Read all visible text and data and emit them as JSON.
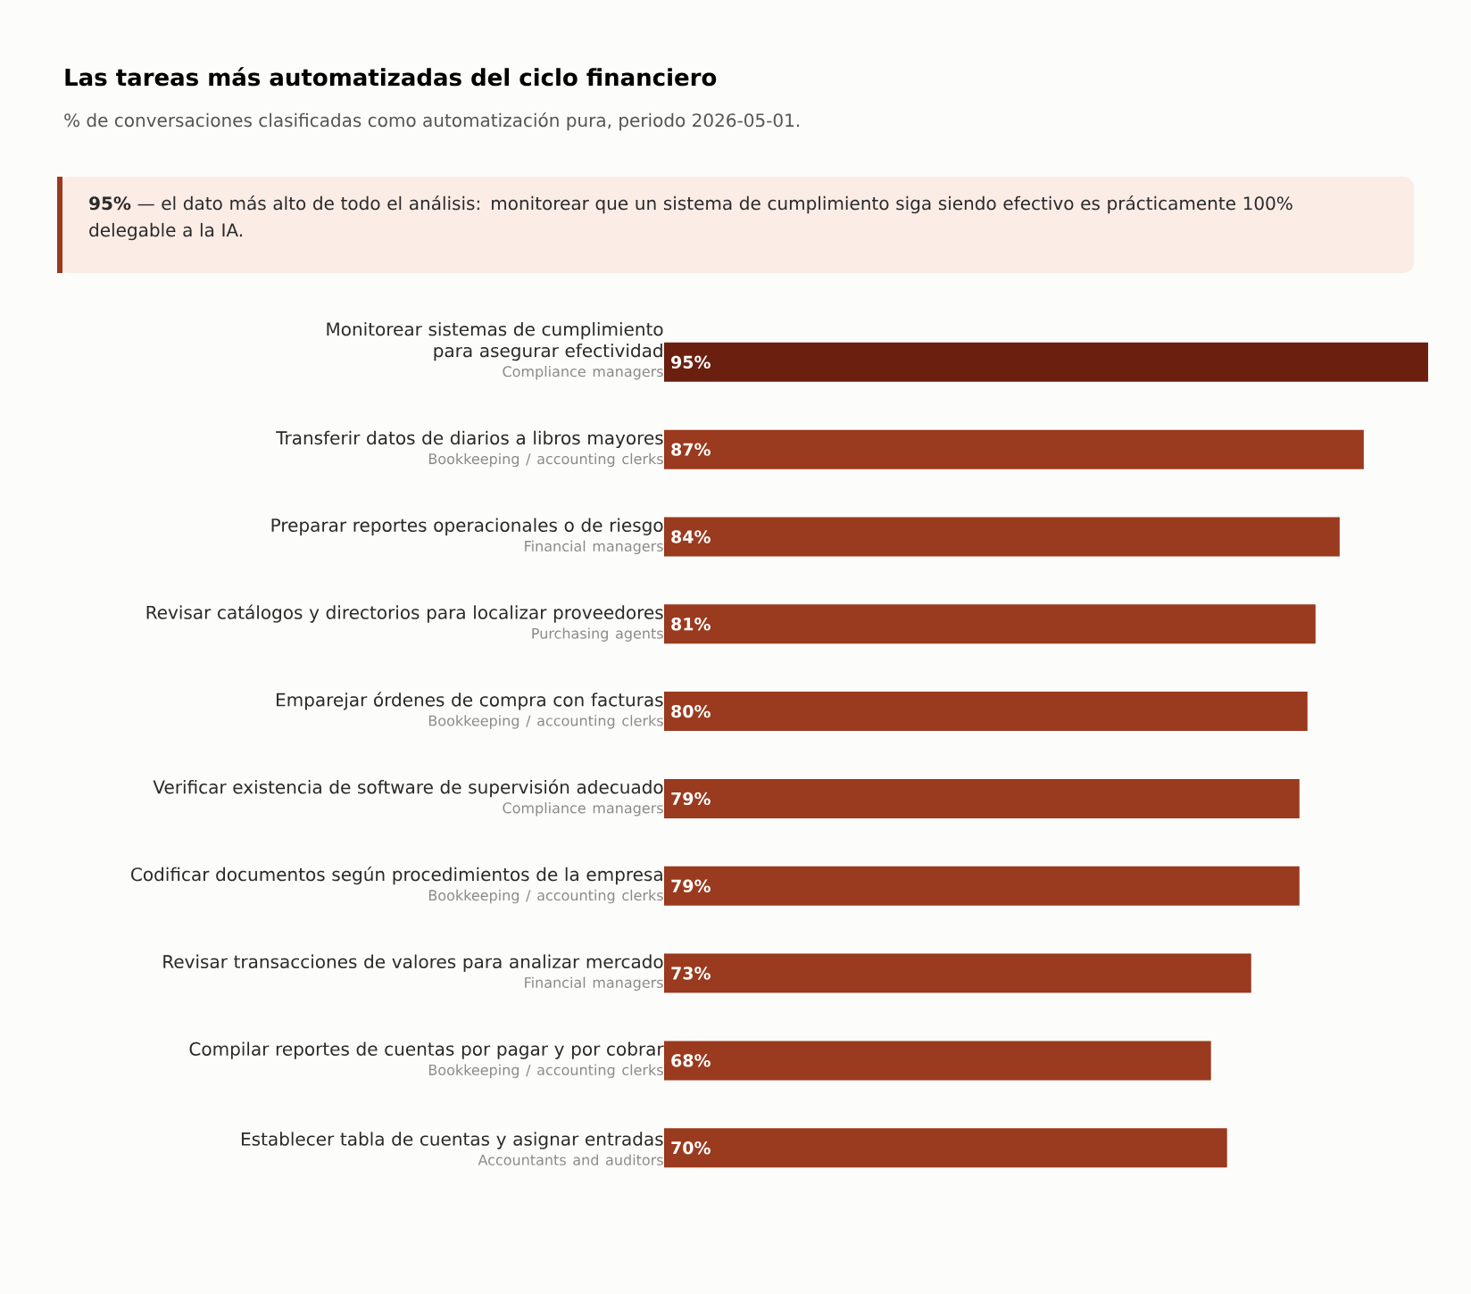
{
  "chart_data": {
    "type": "bar",
    "orientation": "horizontal",
    "title": "Las tareas más automatizadas del ciclo financiero",
    "subtitle": "% de conversaciones clasificadas como automatización pura, periodo 2026-05-01.",
    "categories": [
      "Monitorear sistemas de cumplimiento para asegurar efectividad",
      "Transferir datos de diarios a libros mayores",
      "Preparar reportes operacionales o de riesgo",
      "Revisar catálogos y directorios para localizar proveedores",
      "Emparejar órdenes de compra con facturas",
      "Verificar existencia de software de supervisión adecuado",
      "Codificar documentos según procedimientos de la empresa",
      "Revisar transacciones de valores para analizar mercado",
      "Compilar reportes de cuentas por pagar y por cobrar",
      "Establecer tabla de cuentas y asignar entradas"
    ],
    "values": [
      95,
      87,
      84,
      81,
      80,
      79,
      79,
      73,
      68,
      70
    ],
    "value_labels": [
      "95%",
      "87%",
      "84%",
      "81%",
      "80%",
      "79%",
      "79%",
      "73%",
      "68%",
      "70%"
    ],
    "colors": [
      "#6b1f0f",
      "#9a3a1e",
      "#9a3a1e",
      "#9a3a1e",
      "#9a3a1e",
      "#9a3a1e",
      "#9a3a1e",
      "#9a3a1e",
      "#9a3a1e",
      "#9a3a1e"
    ],
    "tick_labels": "y",
    "annotations": [
      "**95%** — el dato más alto de todo el análisis: monitorear que un sistema de cumplimiento siga siendo efectivo es prácticamente 100% delegable a la IA.",
      "Compliance managers",
      "Bookkeeping / accounting clerks",
      "Financial managers",
      "Purchasing agents",
      "Bookkeeping / accounting clerks",
      "Compliance managers",
      "Bookkeeping / accounting clerks",
      "Financial managers",
      "Bookkeeping / accounting clerks",
      "Accountants and auditors"
    ]
  }
}
